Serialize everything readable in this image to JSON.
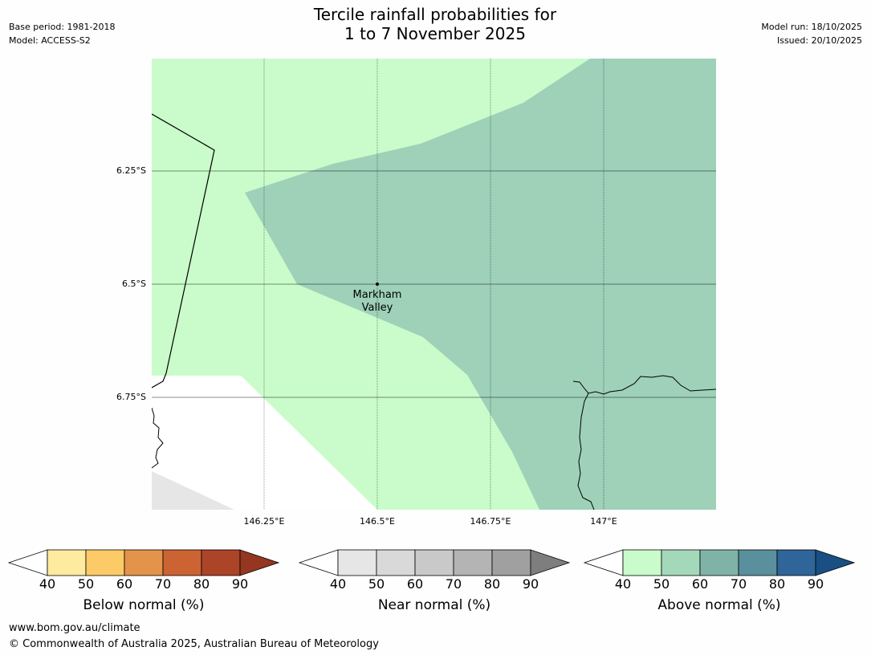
{
  "header": {
    "title_line1": "Tercile rainfall probabilities for",
    "title_line2": "1 to 7 November 2025",
    "base_period": "Base period: 1981-2018",
    "model": "Model: ACCESS-S2",
    "model_run": "Model run: 18/10/2025",
    "issued": "Issued: 20/10/2025"
  },
  "map": {
    "lat_ticks": [
      "6.25°S",
      "6.5°S",
      "6.75°S"
    ],
    "lon_ticks": [
      "146.25°E",
      "146.5°E",
      "146.75°E",
      "147°E"
    ],
    "place_label_line1": "Markham",
    "place_label_line2": "Valley",
    "colors": {
      "above_40_50": "#c9fcca",
      "above_50_60": "#9ed1b8",
      "near_40_50": "#e6e6e6",
      "grid": "#000000"
    }
  },
  "colorbars": [
    {
      "label": "Below normal (%)",
      "ticks": [
        "40",
        "50",
        "60",
        "70",
        "80",
        "90"
      ],
      "colors": [
        "#feeb9f",
        "#fdca68",
        "#e3934a",
        "#cb6333",
        "#ac4428",
        "#943620"
      ]
    },
    {
      "label": "Near normal (%)",
      "ticks": [
        "40",
        "50",
        "60",
        "70",
        "80",
        "90"
      ],
      "colors": [
        "#e6e6e6",
        "#d9d9d9",
        "#c9c9c9",
        "#b4b4b4",
        "#a0a0a0",
        "#7e7e7e"
      ]
    },
    {
      "label": "Above normal (%)",
      "ticks": [
        "40",
        "50",
        "60",
        "70",
        "80",
        "90"
      ],
      "colors": [
        "#c9fcca",
        "#a4d8ba",
        "#80b3a8",
        "#5a8f9d",
        "#2f6599",
        "#194f82"
      ]
    }
  ],
  "footer": {
    "url": "www.bom.gov.au/climate",
    "copyright": "© Commonwealth of Australia 2025, Australian Bureau of Meteorology"
  }
}
